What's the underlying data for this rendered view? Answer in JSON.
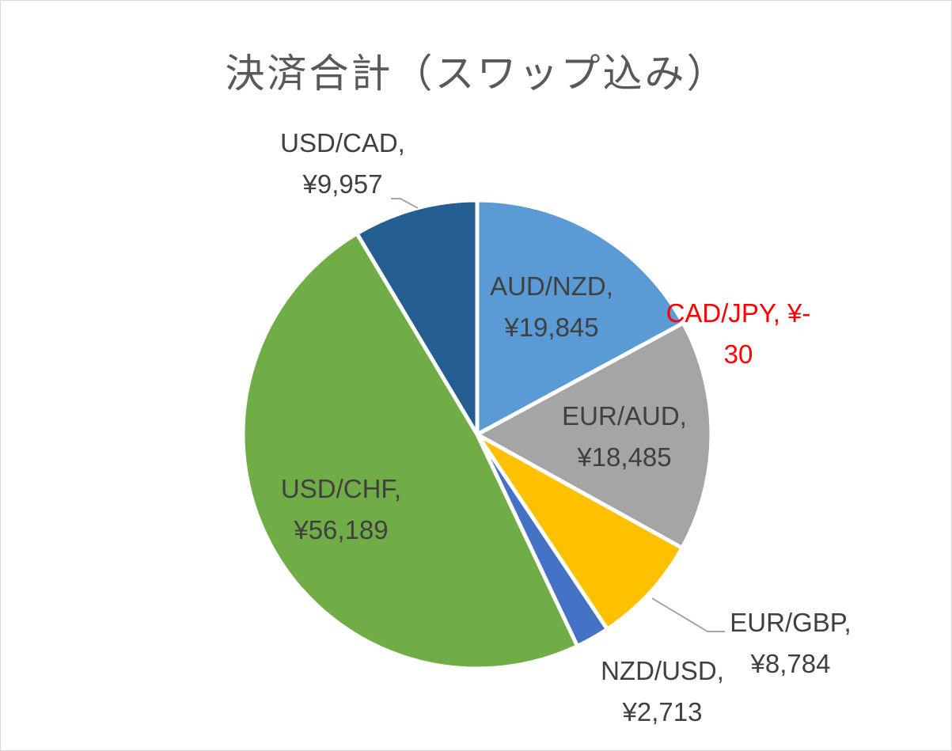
{
  "chart_data": {
    "type": "pie",
    "title": "決済合計（スワップ込み）",
    "categories": [
      "AUD/NZD",
      "CAD/JPY",
      "EUR/AUD",
      "EUR/GBP",
      "NZD/USD",
      "USD/CHF",
      "USD/CAD"
    ],
    "values": [
      19845,
      -30,
      18485,
      8784,
      2713,
      56189,
      9957
    ],
    "value_labels": [
      "¥19,845",
      "¥-30",
      "¥18,485",
      "¥8,784",
      "¥2,713",
      "¥56,189",
      "¥9,957"
    ],
    "colors": [
      "#5b9bd5",
      "#ed7d31",
      "#a5a5a5",
      "#ffc000",
      "#4472c4",
      "#70ad47",
      "#255e91"
    ],
    "label_color": "#404040",
    "negative_label_color": "#ff0000",
    "legend": "none",
    "start_angle_deg": 0,
    "direction": "clockwise"
  }
}
